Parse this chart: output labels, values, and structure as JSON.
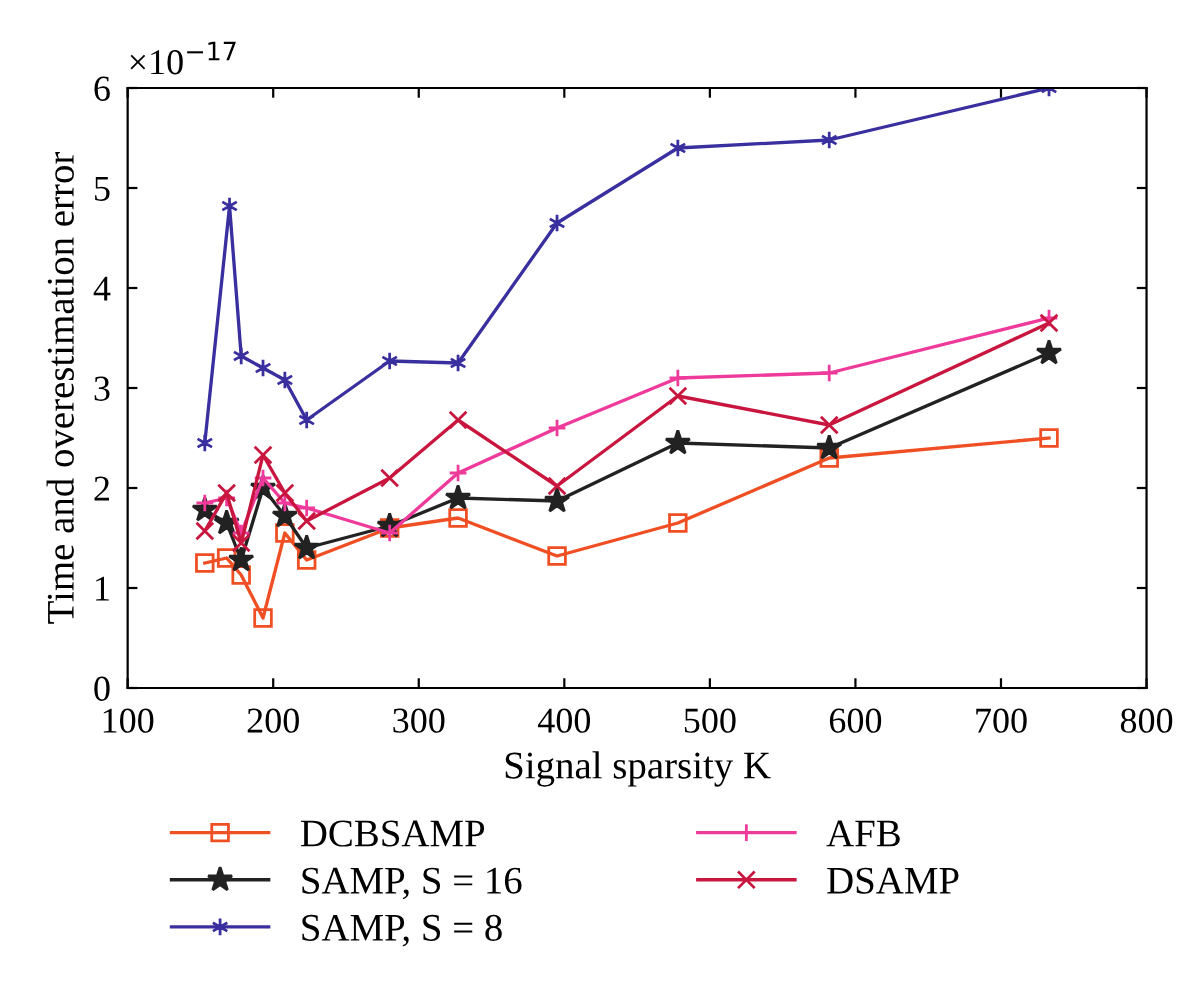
{
  "chart_data": {
    "type": "line",
    "xlabel": "Signal sparsity K",
    "ylabel": "Time and overestimation error",
    "annotations": [
      "×10$^{−17}$"
    ],
    "xlim": [
      100,
      800
    ],
    "xticks": [
      100,
      200,
      300,
      400,
      500,
      600,
      700,
      800
    ],
    "ylim": [
      0,
      6
    ],
    "yticks": [
      0,
      1,
      2,
      3,
      4,
      5,
      6
    ],
    "grid": false,
    "legend": "bottom",
    "line_style": "solid",
    "series": [
      {
        "name": "DCBSAMP",
        "color": "#f04e23",
        "marker": "square",
        "x": [
          153,
          168,
          178,
          193,
          208,
          223,
          280,
          327,
          395,
          478,
          582,
          733
        ],
        "values": [
          1.25,
          1.3,
          1.13,
          0.7,
          1.55,
          1.28,
          1.6,
          1.7,
          1.32,
          1.65,
          2.3,
          2.5
        ]
      },
      {
        "name": "SAMP, S = 16",
        "color": "#222222",
        "marker": "star",
        "x": [
          153,
          168,
          178,
          193,
          208,
          223,
          280,
          327,
          395,
          478,
          582,
          733
        ],
        "values": [
          1.78,
          1.65,
          1.28,
          2.0,
          1.72,
          1.4,
          1.62,
          1.9,
          1.87,
          2.45,
          2.4,
          3.35
        ]
      },
      {
        "name": "SAMP, S = 8",
        "color": "#3a2f9e",
        "marker": "cross",
        "x": [
          153,
          170,
          178,
          193,
          208,
          223,
          280,
          327,
          395,
          478,
          582,
          733
        ],
        "values": [
          2.45,
          4.82,
          3.32,
          3.2,
          3.08,
          2.68,
          3.27,
          3.25,
          4.65,
          5.4,
          5.48,
          6.0
        ]
      },
      {
        "name": "AFB",
        "color": "#ee3a9a",
        "marker": "plus",
        "x": [
          153,
          168,
          178,
          193,
          208,
          223,
          280,
          327,
          395,
          478,
          582,
          733
        ],
        "values": [
          1.85,
          1.9,
          1.55,
          2.1,
          1.85,
          1.8,
          1.55,
          2.15,
          2.6,
          3.1,
          3.15,
          3.7
        ]
      },
      {
        "name": "DSAMP",
        "color": "#c8163f",
        "marker": "x",
        "x": [
          153,
          168,
          178,
          193,
          208,
          223,
          280,
          327,
          395,
          478,
          582,
          733
        ],
        "values": [
          1.57,
          1.95,
          1.45,
          2.33,
          1.95,
          1.67,
          2.1,
          2.68,
          2.02,
          2.92,
          2.63,
          3.65
        ]
      }
    ]
  }
}
